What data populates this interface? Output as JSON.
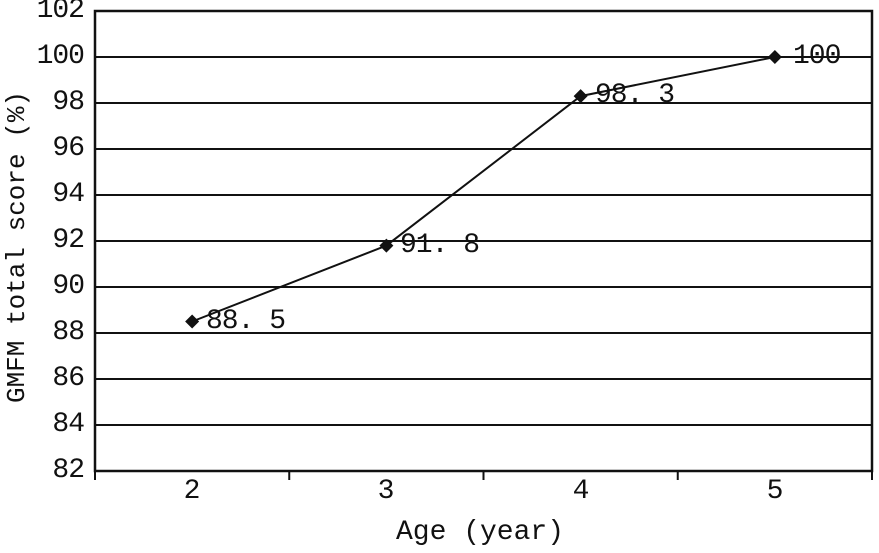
{
  "figure": {
    "background": "#ffffff",
    "ink_color": "#111111"
  },
  "chart_data": {
    "type": "line",
    "title": "",
    "xlabel": "Age (year)",
    "ylabel": "GMFM total score (%)",
    "categories": [
      "2",
      "3",
      "4",
      "5"
    ],
    "series": [
      {
        "name": "GMFM total score",
        "values": [
          88.5,
          91.8,
          98.3,
          100
        ]
      }
    ],
    "point_labels": [
      "88. 5",
      "91. 8",
      "98. 3",
      "100"
    ],
    "ylim": [
      82,
      102
    ],
    "ytick_step": 2,
    "ytick_labels": [
      "102",
      "100",
      "98",
      "96",
      "94",
      "92",
      "90",
      "88",
      "86",
      "84",
      "82"
    ],
    "grid": "horizontal",
    "legend": "none",
    "marker": "diamond",
    "line_color": "#111111",
    "marker_color": "#111111"
  }
}
